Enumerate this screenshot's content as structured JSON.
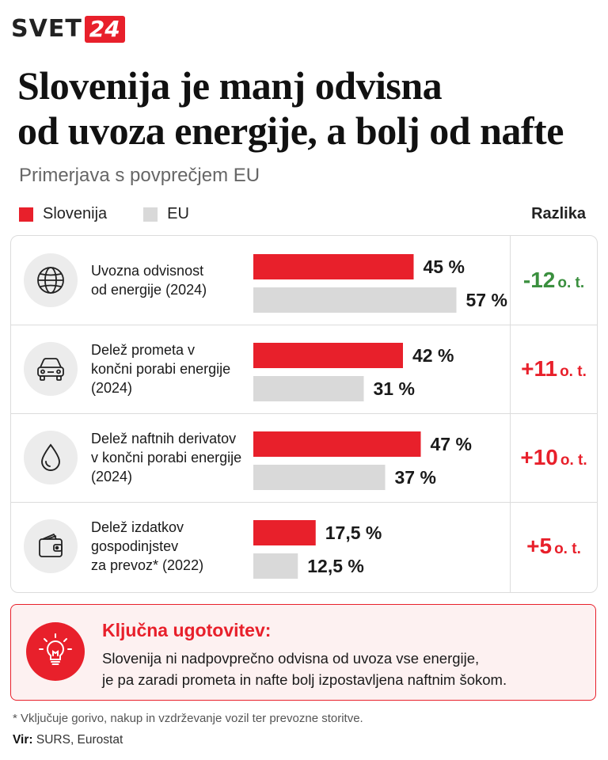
{
  "brand": {
    "name": "SVET",
    "number": "24"
  },
  "title": {
    "line1": "Slovenija je manj odvisna",
    "line2": "od uvoza energije, a bolj od nafte"
  },
  "subtitle": "Primerjava s povprečjem EU",
  "legend": {
    "slovenija": "Slovenija",
    "eu": "EU",
    "difference_header": "Razlika"
  },
  "colors": {
    "slovenija": "#e8202b",
    "eu": "#d9d9d9",
    "negative_diff": "#3a8f3e",
    "positive_diff": "#e8202b"
  },
  "rows": [
    {
      "icon": "globe-icon",
      "label_lines": [
        "Uvozna odvisnost",
        "od energije (2024)"
      ],
      "diff": "-12",
      "diff_unit": "o. t.",
      "diff_color": "#3a8f3e"
    },
    {
      "icon": "car-icon",
      "label_lines": [
        "Delež prometa v",
        "končni porabi energije",
        "(2024)"
      ],
      "diff": "+11",
      "diff_unit": "o. t.",
      "diff_color": "#e8202b"
    },
    {
      "icon": "drop-icon",
      "label_lines": [
        "Delež naftnih derivatov",
        "v končni porabi energije",
        "(2024)"
      ],
      "diff": "+10",
      "diff_unit": "o. t.",
      "diff_color": "#e8202b"
    },
    {
      "icon": "wallet-icon",
      "label_lines": [
        "Delež izdatkov",
        "gospodinjstev",
        "za prevoz* (2022)"
      ],
      "diff": "+5",
      "diff_unit": "o. t.",
      "diff_color": "#e8202b"
    }
  ],
  "chart_data": {
    "type": "bar",
    "categories": [
      "Uvozna odvisnost od energije (2024)",
      "Delež prometa v končni porabi energije (2024)",
      "Delež naftnih derivatov v končni porabi energije (2024)",
      "Delež izdatkov gospodinjstev za prevoz* (2022)"
    ],
    "series": [
      {
        "name": "Slovenija",
        "values": [
          45,
          42,
          47,
          17.5
        ],
        "labels": [
          "45 %",
          "42 %",
          "47 %",
          "17,5 %"
        ]
      },
      {
        "name": "EU",
        "values": [
          57,
          31,
          37,
          12.5
        ],
        "labels": [
          "57 %",
          "31 %",
          "37 %",
          "12,5 %"
        ]
      }
    ],
    "title": "Slovenija je manj odvisna od uvoza energije, a bolj od nafte",
    "subtitle": "Primerjava s povprečjem EU",
    "legend": "top-left",
    "grid": false
  },
  "takeaway": {
    "title": "Ključna ugotovitev:",
    "lines": [
      "Slovenija ni nadpovprečno odvisna od uvoza vse energije,",
      "je pa zaradi prometa in nafte bolj izpostavljena naftnim šokom."
    ],
    "icon": "lightbulb-icon"
  },
  "footnote": "* Vključuje gorivo, nakup in vzdrževanje vozil ter prevozne storitve.",
  "source": {
    "label": "Vir:",
    "text": "SURS, Eurostat"
  }
}
